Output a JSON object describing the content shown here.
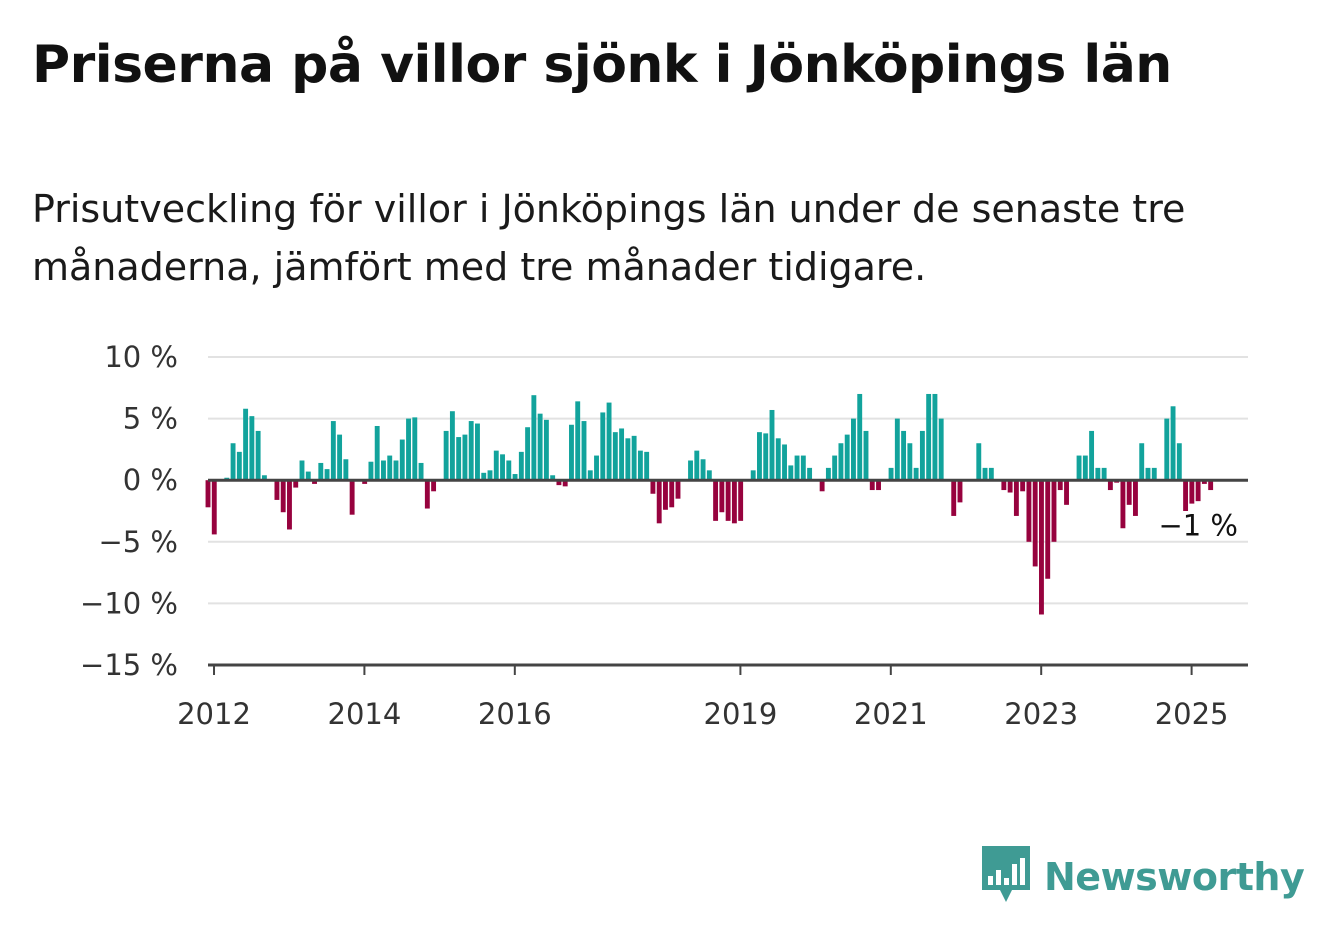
{
  "title": "Priserna på villor sjönk i Jönköpings län",
  "subtitle": "Prisutveckling för villor i Jönköpings län under de senaste tre månaderna, jämfört med tre månader tidigare.",
  "brand": {
    "name": "Newsworthy",
    "icon": "newsworthy-logo-icon"
  },
  "colors": {
    "positive": "#12a39c",
    "negative": "#97023e",
    "grid": "#e2e2e2",
    "zero_line": "#444444",
    "brand": "#3f9b94"
  },
  "chart_data": {
    "type": "bar",
    "title": "Priserna på villor sjönk i Jönköpings län",
    "ylim": [
      -15,
      10
    ],
    "y_ticks": [
      {
        "value": 10,
        "label": "10 %"
      },
      {
        "value": 5,
        "label": "5 %"
      },
      {
        "value": 0,
        "label": "0 %"
      },
      {
        "value": -5,
        "label": "−5 %"
      },
      {
        "value": -10,
        "label": "−10 %"
      },
      {
        "value": -15,
        "label": "−15 %"
      }
    ],
    "x_ticks": [
      {
        "value": 2012.0,
        "label": "2012"
      },
      {
        "value": 2014.0,
        "label": "2014"
      },
      {
        "value": 2016.0,
        "label": "2016"
      },
      {
        "value": 2019.0,
        "label": "2019"
      },
      {
        "value": 2021.0,
        "label": "2021"
      },
      {
        "value": 2023.0,
        "label": "2023"
      },
      {
        "value": 2025.0,
        "label": "2025"
      }
    ],
    "x_start": 2011.92,
    "x_end": 2025.75,
    "grid": true,
    "annotation": {
      "label": "−1 %",
      "value": -1
    },
    "values": [
      -2.2,
      -4.4,
      0,
      0.2,
      3.0,
      2.3,
      5.8,
      5.2,
      4.0,
      0.4,
      0,
      -1.6,
      -2.6,
      -4.0,
      -0.6,
      1.6,
      0.7,
      -0.3,
      1.4,
      0.9,
      4.8,
      3.7,
      1.7,
      -2.8,
      0,
      -0.3,
      1.5,
      4.4,
      1.6,
      2.0,
      1.6,
      3.3,
      5.0,
      5.1,
      1.4,
      -2.3,
      -0.9,
      0,
      4.0,
      5.6,
      3.5,
      3.7,
      4.8,
      4.6,
      0.6,
      0.8,
      2.4,
      2.1,
      1.6,
      0.5,
      2.3,
      4.3,
      6.9,
      5.4,
      4.9,
      0.4,
      -0.4,
      -0.5,
      4.5,
      6.4,
      4.8,
      0.8,
      2.0,
      5.5,
      6.3,
      3.9,
      4.2,
      3.4,
      3.6,
      2.4,
      2.3,
      -1.1,
      -3.5,
      -2.4,
      -2.2,
      -1.5,
      0,
      1.6,
      2.4,
      1.7,
      0.8,
      -3.3,
      -2.6,
      -3.3,
      -3.5,
      -3.3,
      0,
      0.8,
      3.9,
      3.8,
      5.7,
      3.4,
      2.9,
      1.2,
      2.0,
      2.0,
      1.0,
      0,
      -0.9,
      1.0,
      2.0,
      3.0,
      3.7,
      5.0,
      7.0,
      4.0,
      -0.8,
      -0.8,
      0,
      1.0,
      5.0,
      4.0,
      3.0,
      1.0,
      4.0,
      7.0,
      7.0,
      5.0,
      0,
      -2.9,
      -1.8,
      0,
      0,
      3.0,
      1.0,
      1.0,
      0,
      -0.8,
      -1.0,
      -2.9,
      -0.9,
      -5.0,
      -7.0,
      -10.9,
      -8.0,
      -5.0,
      -0.8,
      -2.0,
      0,
      2.0,
      2.0,
      4.0,
      1.0,
      1.0,
      -0.8,
      -0.2,
      -3.9,
      -2.0,
      -2.9,
      3.0,
      1.0,
      1.0,
      0,
      5.0,
      6.0,
      3.0,
      -2.5,
      -1.9,
      -1.7,
      -0.3,
      -0.8,
      0
    ]
  }
}
